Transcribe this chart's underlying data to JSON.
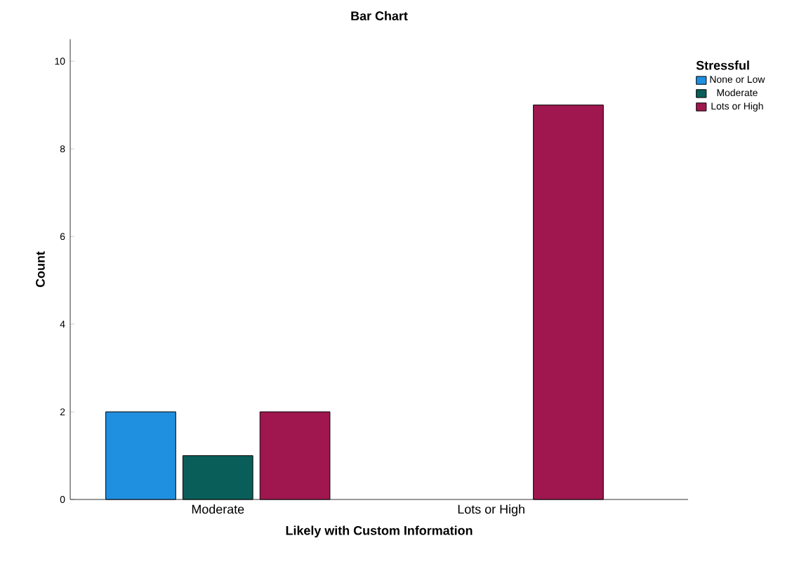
{
  "chart_data": {
    "type": "bar",
    "title": "Bar Chart",
    "xlabel": "Likely with Custom Information",
    "ylabel": "Count",
    "legend_title": "Stressful",
    "categories": [
      "Moderate",
      "Lots or High"
    ],
    "series": [
      {
        "name": "None or Low",
        "color": "#1f8fe0",
        "values": [
          2,
          null
        ]
      },
      {
        "name": "Moderate",
        "color": "#0a5e5a",
        "values": [
          1,
          null
        ]
      },
      {
        "name": "Lots or High",
        "color": "#a0174f",
        "values": [
          2,
          9
        ]
      }
    ],
    "ylim": [
      0,
      10.5
    ],
    "yticks": [
      0,
      2,
      4,
      6,
      8,
      10
    ],
    "legend": "top right",
    "grid": false
  }
}
